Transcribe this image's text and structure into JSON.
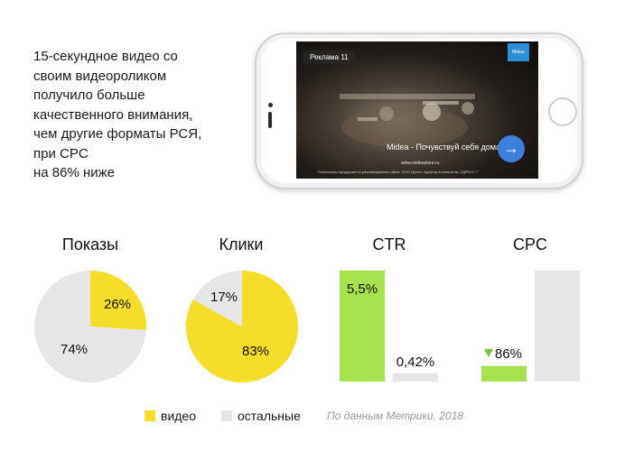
{
  "intro": {
    "lines": [
      "15-секундное видео со",
      "своим видеороликом",
      "получило больше",
      "качественного внимания,",
      "чем другие форматы РСЯ,",
      "при CPC",
      "на 86% ниже"
    ]
  },
  "ad": {
    "badge": "Реклама 11",
    "brand": "Midea",
    "slogan": "Midea - Почувствуй себя дома",
    "url": "www.mideastore.ru",
    "legal": "Реализатор продукции на рекламируемом сайте: ООО Ореол. Куратор Кооператив, СДРЕСС Т",
    "arrow": "→"
  },
  "colors": {
    "video": "#f5dd2a",
    "other": "#e6e6e6",
    "green": "#a6e24e"
  },
  "chart_data": [
    {
      "type": "pie",
      "title": "Показы",
      "slices": [
        {
          "label": "видео",
          "value": 26,
          "text": "26%"
        },
        {
          "label": "остальные",
          "value": 74,
          "text": "74%"
        }
      ]
    },
    {
      "type": "pie",
      "title": "Клики",
      "slices": [
        {
          "label": "видео",
          "value": 83,
          "text": "83%"
        },
        {
          "label": "остальные",
          "value": 17,
          "text": "17%"
        }
      ]
    },
    {
      "type": "bar",
      "title": "CTR",
      "categories": [
        "видео",
        "остальные"
      ],
      "values": [
        5.5,
        0.42
      ],
      "labels": [
        "5,5%",
        "0,42%"
      ]
    },
    {
      "type": "bar",
      "title": "CPC",
      "categories": [
        "видео",
        "остальные"
      ],
      "values_relative": [
        0.14,
        1.0
      ],
      "labels": [
        "86%",
        ""
      ],
      "annotation": "▼ 86%"
    }
  ],
  "legend": [
    {
      "label": "видео"
    },
    {
      "label": "остальные"
    }
  ],
  "source": "По данным Метрики, 2018"
}
